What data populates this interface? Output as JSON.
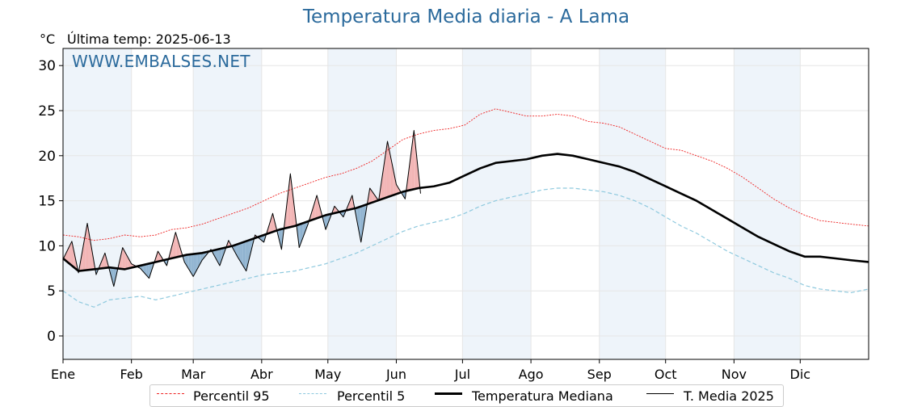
{
  "header": {
    "title": "Temperatura Media diaria - A Lama",
    "unit": "°C",
    "last_temp": "Última temp: 2025-06-13",
    "watermark": "WWW.EMBALSES.NET"
  },
  "colors": {
    "p95": "#ee2222",
    "p5": "#8ec9de",
    "median": "#000000",
    "year": "#000000",
    "above_fill": "#f2b3b3",
    "below_fill": "#8fb3d0",
    "below_deep_fill": "#1f5f94",
    "band": "#eef4fa",
    "title": "#2b6a9c"
  },
  "legend": {
    "p95": "Percentil 95",
    "p5": "Percentil 5",
    "median": "Temperatura Mediana",
    "year": "T. Media 2025"
  },
  "chart_data": {
    "type": "line",
    "title": "Temperatura Media diaria - A Lama",
    "ylabel": "°C",
    "ylim": [
      -2.6,
      31.9
    ],
    "yticks": [
      0,
      5,
      10,
      15,
      20,
      25,
      30
    ],
    "xlim": [
      1,
      366
    ],
    "grid": true,
    "legend_position": "bottom",
    "months": [
      {
        "label": "Ene",
        "day": 1
      },
      {
        "label": "Feb",
        "day": 32
      },
      {
        "label": "Mar",
        "day": 60
      },
      {
        "label": "Abr",
        "day": 91
      },
      {
        "label": "May",
        "day": 121
      },
      {
        "label": "Jun",
        "day": 152
      },
      {
        "label": "Jul",
        "day": 182
      },
      {
        "label": "Ago",
        "day": 213
      },
      {
        "label": "Sep",
        "day": 244
      },
      {
        "label": "Oct",
        "day": 274
      },
      {
        "label": "Nov",
        "day": 305
      },
      {
        "label": "Dic",
        "day": 335
      }
    ],
    "series": [
      {
        "name": "Percentil 95",
        "points": [
          [
            1,
            11.2
          ],
          [
            8,
            11.0
          ],
          [
            15,
            10.6
          ],
          [
            22,
            10.8
          ],
          [
            29,
            11.2
          ],
          [
            36,
            11.0
          ],
          [
            43,
            11.2
          ],
          [
            50,
            11.8
          ],
          [
            57,
            12.0
          ],
          [
            64,
            12.4
          ],
          [
            71,
            13.0
          ],
          [
            78,
            13.6
          ],
          [
            85,
            14.2
          ],
          [
            92,
            15.0
          ],
          [
            99,
            15.8
          ],
          [
            106,
            16.4
          ],
          [
            113,
            17.0
          ],
          [
            120,
            17.6
          ],
          [
            127,
            18.0
          ],
          [
            134,
            18.6
          ],
          [
            141,
            19.4
          ],
          [
            148,
            20.6
          ],
          [
            155,
            21.8
          ],
          [
            162,
            22.4
          ],
          [
            169,
            22.8
          ],
          [
            176,
            23.0
          ],
          [
            183,
            23.4
          ],
          [
            190,
            24.6
          ],
          [
            197,
            25.2
          ],
          [
            204,
            24.8
          ],
          [
            211,
            24.4
          ],
          [
            218,
            24.4
          ],
          [
            225,
            24.6
          ],
          [
            232,
            24.4
          ],
          [
            239,
            23.8
          ],
          [
            246,
            23.6
          ],
          [
            253,
            23.2
          ],
          [
            260,
            22.4
          ],
          [
            267,
            21.6
          ],
          [
            274,
            20.8
          ],
          [
            281,
            20.6
          ],
          [
            288,
            20.0
          ],
          [
            295,
            19.4
          ],
          [
            302,
            18.6
          ],
          [
            309,
            17.6
          ],
          [
            316,
            16.4
          ],
          [
            323,
            15.2
          ],
          [
            330,
            14.2
          ],
          [
            337,
            13.4
          ],
          [
            344,
            12.8
          ],
          [
            351,
            12.6
          ],
          [
            358,
            12.4
          ],
          [
            366,
            12.2
          ]
        ]
      },
      {
        "name": "Percentil 5",
        "points": [
          [
            1,
            5.0
          ],
          [
            8,
            3.8
          ],
          [
            15,
            3.2
          ],
          [
            22,
            4.0
          ],
          [
            29,
            4.2
          ],
          [
            36,
            4.4
          ],
          [
            43,
            4.0
          ],
          [
            50,
            4.4
          ],
          [
            57,
            4.8
          ],
          [
            64,
            5.2
          ],
          [
            71,
            5.6
          ],
          [
            78,
            6.0
          ],
          [
            85,
            6.4
          ],
          [
            92,
            6.8
          ],
          [
            99,
            7.0
          ],
          [
            106,
            7.2
          ],
          [
            113,
            7.6
          ],
          [
            120,
            8.0
          ],
          [
            127,
            8.6
          ],
          [
            134,
            9.2
          ],
          [
            141,
            10.0
          ],
          [
            148,
            10.8
          ],
          [
            155,
            11.6
          ],
          [
            162,
            12.2
          ],
          [
            169,
            12.6
          ],
          [
            176,
            13.0
          ],
          [
            183,
            13.6
          ],
          [
            190,
            14.4
          ],
          [
            197,
            15.0
          ],
          [
            204,
            15.4
          ],
          [
            211,
            15.8
          ],
          [
            218,
            16.2
          ],
          [
            225,
            16.4
          ],
          [
            232,
            16.4
          ],
          [
            239,
            16.2
          ],
          [
            246,
            16.0
          ],
          [
            253,
            15.6
          ],
          [
            260,
            15.0
          ],
          [
            267,
            14.2
          ],
          [
            274,
            13.2
          ],
          [
            281,
            12.2
          ],
          [
            288,
            11.4
          ],
          [
            295,
            10.4
          ],
          [
            302,
            9.4
          ],
          [
            309,
            8.6
          ],
          [
            316,
            7.8
          ],
          [
            323,
            7.0
          ],
          [
            330,
            6.4
          ],
          [
            337,
            5.6
          ],
          [
            344,
            5.2
          ],
          [
            351,
            5.0
          ],
          [
            358,
            4.8
          ],
          [
            366,
            5.2
          ]
        ]
      },
      {
        "name": "Temperatura Mediana",
        "points": [
          [
            1,
            8.6
          ],
          [
            8,
            7.2
          ],
          [
            15,
            7.4
          ],
          [
            22,
            7.6
          ],
          [
            29,
            7.4
          ],
          [
            36,
            7.8
          ],
          [
            43,
            8.2
          ],
          [
            50,
            8.6
          ],
          [
            57,
            9.0
          ],
          [
            64,
            9.2
          ],
          [
            71,
            9.6
          ],
          [
            78,
            10.0
          ],
          [
            85,
            10.6
          ],
          [
            92,
            11.2
          ],
          [
            99,
            11.8
          ],
          [
            106,
            12.2
          ],
          [
            113,
            12.8
          ],
          [
            120,
            13.4
          ],
          [
            127,
            13.8
          ],
          [
            134,
            14.2
          ],
          [
            141,
            14.8
          ],
          [
            148,
            15.4
          ],
          [
            155,
            16.0
          ],
          [
            162,
            16.4
          ],
          [
            169,
            16.6
          ],
          [
            176,
            17.0
          ],
          [
            183,
            17.8
          ],
          [
            190,
            18.6
          ],
          [
            197,
            19.2
          ],
          [
            204,
            19.4
          ],
          [
            211,
            19.6
          ],
          [
            218,
            20.0
          ],
          [
            225,
            20.2
          ],
          [
            232,
            20.0
          ],
          [
            239,
            19.6
          ],
          [
            246,
            19.2
          ],
          [
            253,
            18.8
          ],
          [
            260,
            18.2
          ],
          [
            267,
            17.4
          ],
          [
            274,
            16.6
          ],
          [
            281,
            15.8
          ],
          [
            288,
            15.0
          ],
          [
            295,
            14.0
          ],
          [
            302,
            13.0
          ],
          [
            309,
            12.0
          ],
          [
            316,
            11.0
          ],
          [
            323,
            10.2
          ],
          [
            330,
            9.4
          ],
          [
            337,
            8.8
          ],
          [
            344,
            8.8
          ],
          [
            351,
            8.6
          ],
          [
            358,
            8.4
          ],
          [
            366,
            8.2
          ]
        ]
      },
      {
        "name": "T. Media 2025",
        "points": [
          [
            1,
            8.5
          ],
          [
            5,
            10.5
          ],
          [
            8,
            7.0
          ],
          [
            12,
            12.5
          ],
          [
            16,
            6.8
          ],
          [
            20,
            9.2
          ],
          [
            24,
            5.5
          ],
          [
            28,
            9.8
          ],
          [
            32,
            8.0
          ],
          [
            36,
            7.5
          ],
          [
            40,
            6.4
          ],
          [
            44,
            9.4
          ],
          [
            48,
            7.8
          ],
          [
            52,
            11.5
          ],
          [
            56,
            8.2
          ],
          [
            60,
            6.6
          ],
          [
            64,
            8.4
          ],
          [
            68,
            9.6
          ],
          [
            72,
            7.8
          ],
          [
            76,
            10.6
          ],
          [
            80,
            8.8
          ],
          [
            84,
            7.2
          ],
          [
            88,
            11.2
          ],
          [
            92,
            10.4
          ],
          [
            96,
            13.6
          ],
          [
            100,
            9.6
          ],
          [
            104,
            18.0
          ],
          [
            108,
            9.8
          ],
          [
            112,
            12.4
          ],
          [
            116,
            15.6
          ],
          [
            120,
            11.8
          ],
          [
            124,
            14.4
          ],
          [
            128,
            13.2
          ],
          [
            132,
            15.6
          ],
          [
            136,
            10.4
          ],
          [
            140,
            16.4
          ],
          [
            144,
            15.0
          ],
          [
            148,
            21.6
          ],
          [
            152,
            16.8
          ],
          [
            156,
            15.2
          ],
          [
            160,
            22.8
          ],
          [
            163,
            15.8
          ]
        ]
      }
    ]
  }
}
